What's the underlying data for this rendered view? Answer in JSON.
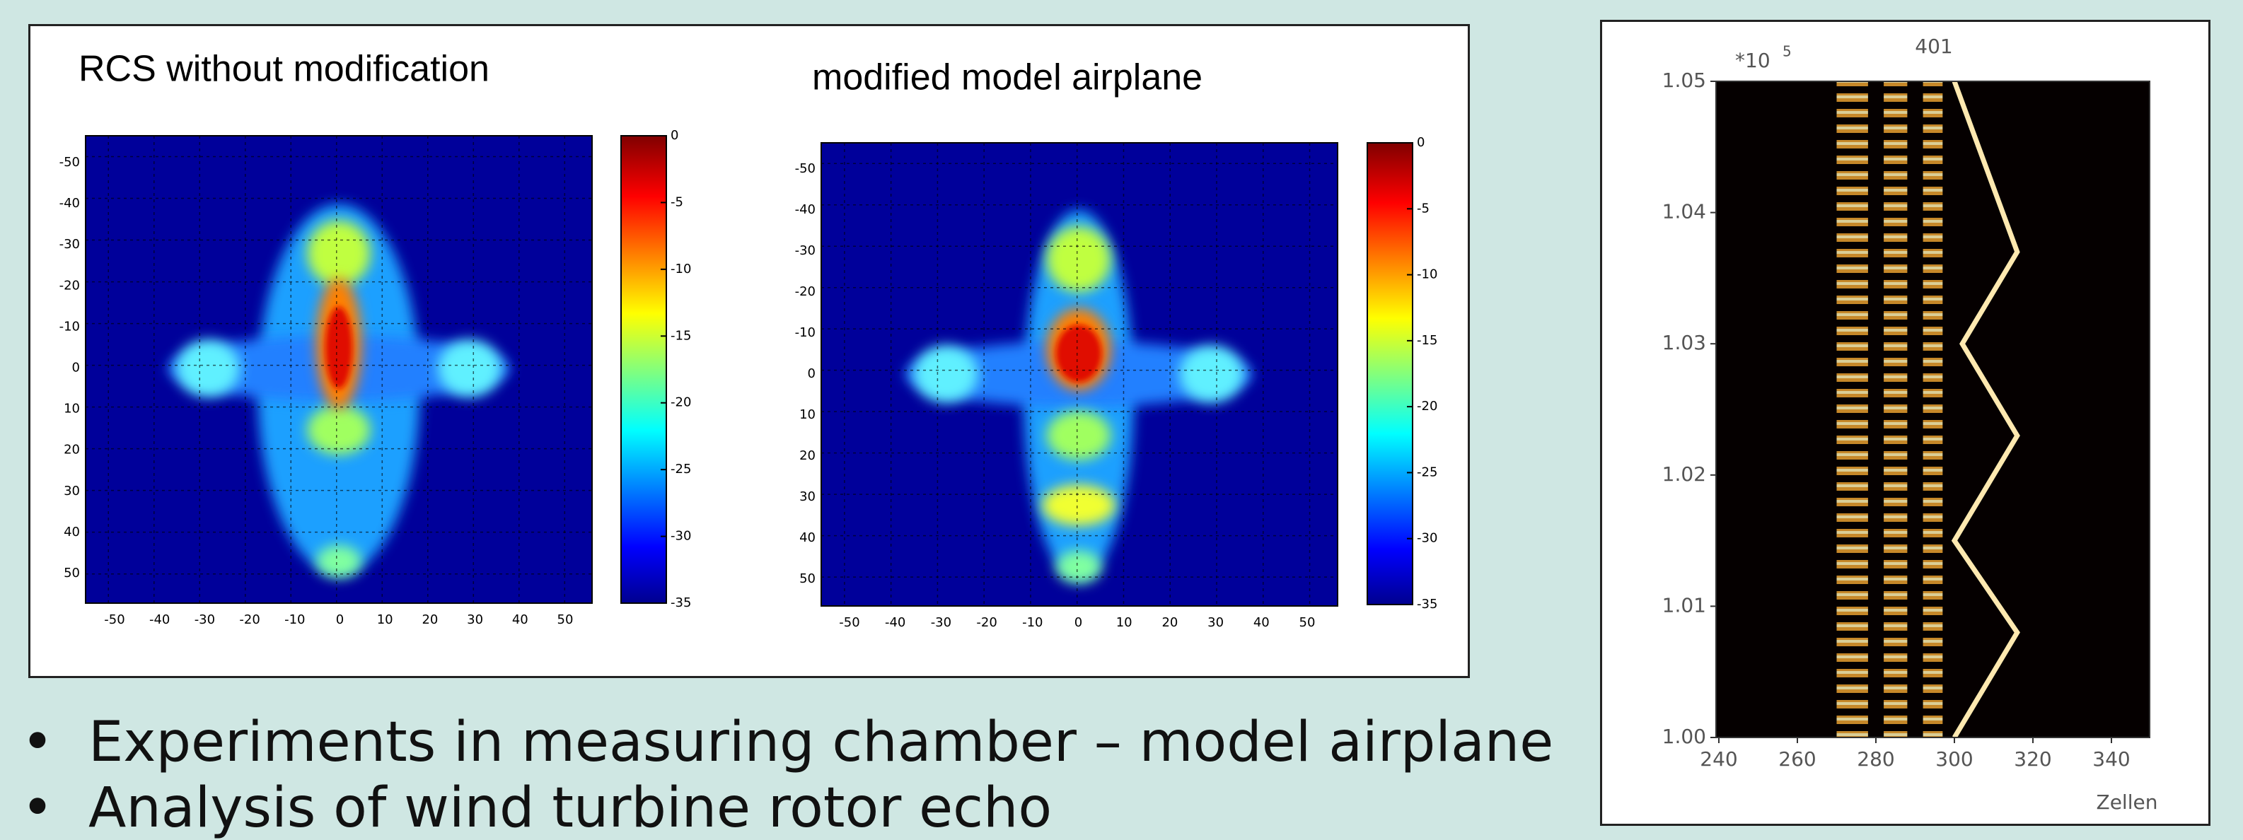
{
  "slide": {
    "panel_left": {
      "title": "RCS without modification",
      "x_ticks": [
        "-50",
        "-40",
        "-30",
        "-20",
        "-10",
        "0",
        "10",
        "20",
        "30",
        "40",
        "50"
      ],
      "y_ticks": [
        "-50",
        "-40",
        "-30",
        "-20",
        "-10",
        "0",
        "10",
        "20",
        "30",
        "40",
        "50"
      ],
      "colorbar_ticks": [
        "0",
        "-5",
        "-10",
        "-15",
        "-20",
        "-25",
        "-30",
        "-35"
      ]
    },
    "panel_right": {
      "title": "modified model airplane",
      "x_ticks": [
        "-50",
        "-40",
        "-30",
        "-20",
        "-10",
        "0",
        "10",
        "20",
        "30",
        "40",
        "50"
      ],
      "y_ticks": [
        "-50",
        "-40",
        "-30",
        "-20",
        "-10",
        "0",
        "10",
        "20",
        "30",
        "40",
        "50"
      ],
      "colorbar_ticks": [
        "0",
        "-5",
        "-10",
        "-15",
        "-20",
        "-25",
        "-30",
        "-35"
      ]
    },
    "radar": {
      "exponent_base": "*10",
      "exponent": "5",
      "top_label": "401",
      "y_ticks": [
        "1.05",
        "1.04",
        "1.03",
        "1.02",
        "1.01",
        "1.00"
      ],
      "x_ticks": [
        "240",
        "260",
        "280",
        "300",
        "320",
        "340"
      ],
      "x_axis_label": "Zellen"
    },
    "bullets": [
      "Experiments in measuring chamber – model airplane",
      "Analysis of wind turbine rotor echo"
    ]
  }
}
